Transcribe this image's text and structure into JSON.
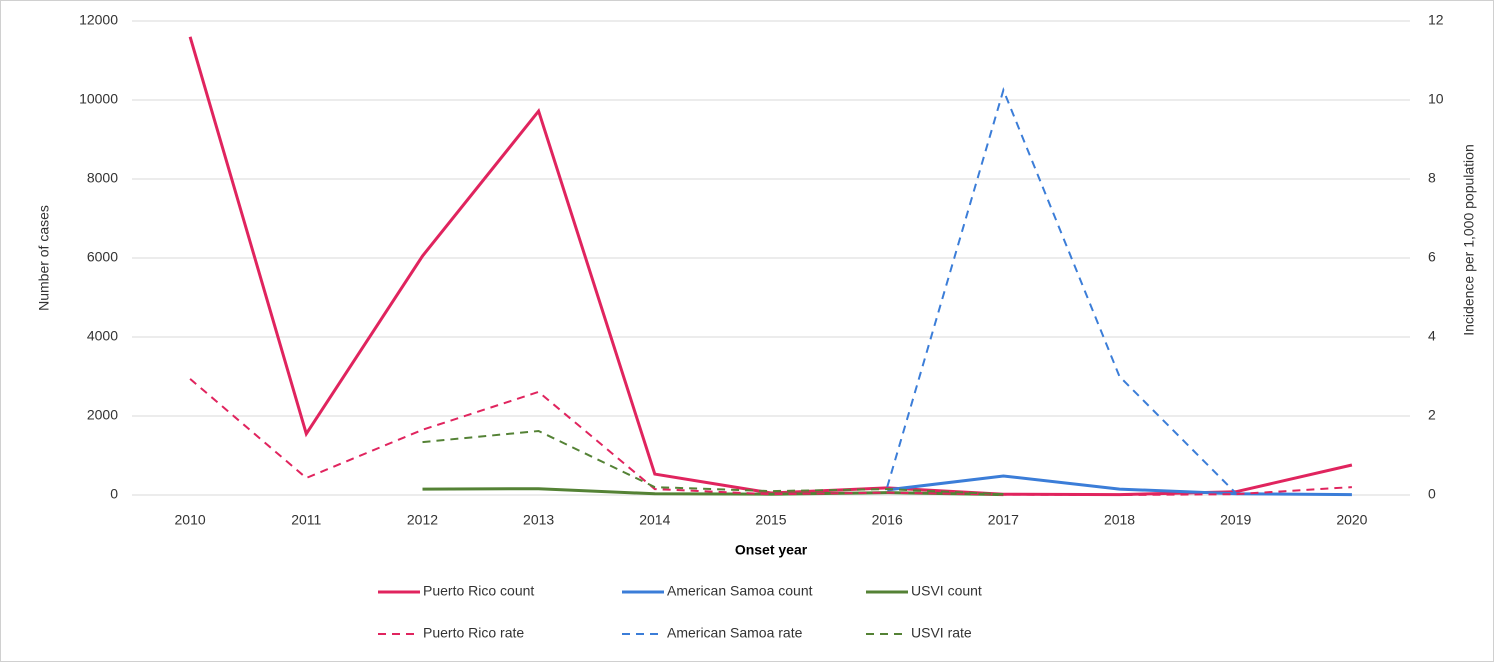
{
  "chart_data": {
    "type": "line",
    "x_label": "Onset year",
    "y_label": "Number of cases",
    "y2_label": "Incidence per 1,000 population",
    "categories": [
      "2010",
      "2011",
      "2012",
      "2013",
      "2014",
      "2015",
      "2016",
      "2017",
      "2018",
      "2019",
      "2020"
    ],
    "ylim": [
      0,
      12000
    ],
    "yticks": [
      0,
      2000,
      4000,
      6000,
      8000,
      10000,
      12000
    ],
    "y2lim": [
      0,
      12
    ],
    "y2ticks": [
      0,
      2,
      4,
      6,
      8,
      10,
      12
    ],
    "grid": true,
    "legend": "bottom",
    "series": [
      {
        "name": "Puerto Rico count",
        "color": "#e0245e",
        "style": "solid",
        "values": [
          11600,
          1550,
          6050,
          9720,
          530,
          50,
          180,
          20,
          10,
          80,
          760
        ]
      },
      {
        "name": "American Samoa count",
        "color": "#3b7dd8",
        "style": "solid",
        "values": [
          null,
          null,
          null,
          null,
          null,
          null,
          130,
          480,
          150,
          30,
          10
        ]
      },
      {
        "name": "USVI count",
        "color": "#548235",
        "style": "solid",
        "values": [
          null,
          null,
          150,
          160,
          30,
          20,
          60,
          10,
          null,
          null,
          null
        ]
      },
      {
        "name": "Puerto Rico rate",
        "color": "#e0245e",
        "style": "dashed",
        "axis": "y2",
        "values": [
          2.94,
          0.43,
          1.65,
          2.61,
          0.15,
          0.02,
          0.06,
          0.01,
          0,
          0.02,
          0.2
        ]
      },
      {
        "name": "American Samoa rate",
        "color": "#3b7dd8",
        "style": "dashed",
        "axis": "y2",
        "values": [
          null,
          null,
          null,
          null,
          null,
          null,
          0.2,
          10.25,
          3.0,
          0.05,
          null
        ]
      },
      {
        "name": "USVI rate",
        "color": "#548235",
        "style": "dashed",
        "axis": "y2",
        "values": [
          null,
          null,
          1.34,
          1.62,
          0.2,
          0.1,
          0.15,
          0.02,
          null,
          null,
          null
        ]
      }
    ]
  }
}
